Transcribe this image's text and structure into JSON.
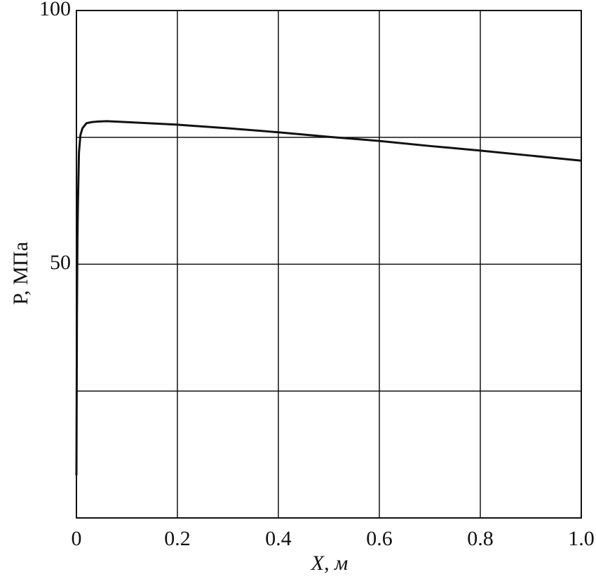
{
  "chart_data": {
    "type": "line",
    "xlabel": "X, м",
    "ylabel": "P, МПа",
    "xlim": [
      0,
      1
    ],
    "ylim": [
      0,
      100
    ],
    "xticks": [
      0,
      0.2,
      0.4,
      0.6,
      0.8,
      {
        "value": 1,
        "label": "1.0"
      }
    ],
    "yticks": [
      50,
      100
    ],
    "y_minor_grid": [
      25,
      75
    ],
    "grid": true,
    "series": [
      {
        "color": "#111111",
        "x": [
          0,
          0.001,
          0.002,
          0.003,
          0.005,
          0.008,
          0.012,
          0.02,
          0.03,
          0.04,
          0.06,
          0.1,
          0.2,
          0.3,
          0.4,
          0.5,
          0.6,
          0.7,
          0.8,
          0.9,
          1.0
        ],
        "values": [
          8.4,
          40,
          55,
          62,
          72,
          75.5,
          76.8,
          77.8,
          78.0,
          78.1,
          78.2,
          78.0,
          77.5,
          76.8,
          76.0,
          75.1,
          74.3,
          73.3,
          72.4,
          71.4,
          70.4
        ]
      }
    ]
  }
}
